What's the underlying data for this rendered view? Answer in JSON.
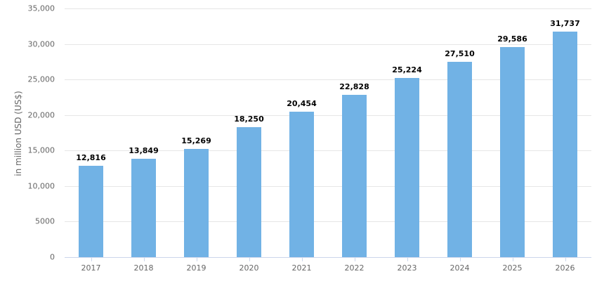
{
  "chart_data": {
    "type": "bar",
    "title": "",
    "xlabel": "",
    "ylabel": "in million USD (US$)",
    "categories": [
      "2017",
      "2018",
      "2019",
      "2020",
      "2021",
      "2022",
      "2023",
      "2024",
      "2025",
      "2026"
    ],
    "values": [
      12816,
      13849,
      15269,
      18250,
      20454,
      22828,
      25224,
      27510,
      29586,
      31737
    ],
    "value_labels": [
      "12,816",
      "13,849",
      "15,269",
      "18,250",
      "20,454",
      "22,828",
      "25,224",
      "27,510",
      "29,586",
      "31,737"
    ],
    "ylim": [
      0,
      35000
    ],
    "yticks": [
      0,
      5000,
      10000,
      15000,
      20000,
      25000,
      30000,
      35000
    ],
    "ytick_labels": [
      "0",
      "5000",
      "10,000",
      "15,000",
      "20,000",
      "25,000",
      "30,000",
      "35,000"
    ],
    "grid": true,
    "legend": null,
    "bar_color": "#71b2e5"
  }
}
